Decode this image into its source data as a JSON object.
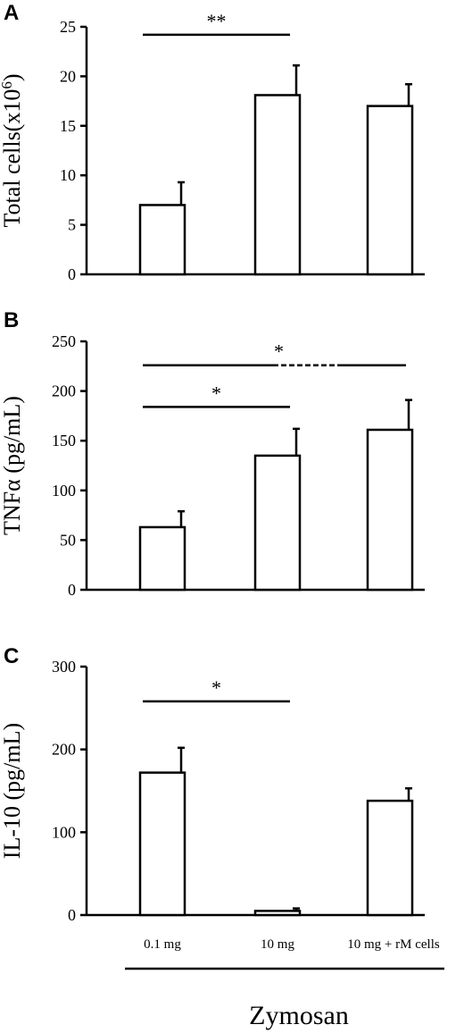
{
  "figure": {
    "xlabel": "Zymosan",
    "categories": [
      "0.1 mg",
      "10 mg",
      "10 mg + rM cells"
    ]
  },
  "chart_data": [
    {
      "panel": "A",
      "type": "bar",
      "ylabel": "Total cells(x10",
      "ylabel_sup": "6",
      "ylabel_end": ")",
      "ylim": [
        0,
        25
      ],
      "yticks": [
        0,
        5,
        10,
        15,
        20,
        25
      ],
      "categories": [
        "0.1 mg",
        "10 mg",
        "10 mg + rM cells"
      ],
      "values": [
        7.0,
        18.1,
        17.0
      ],
      "errors": [
        2.3,
        3.0,
        2.2
      ],
      "significance": [
        {
          "from": 0,
          "to": 1,
          "label": "**",
          "y": 24.2,
          "dashed": false
        }
      ]
    },
    {
      "panel": "B",
      "type": "bar",
      "ylabel": "TNFα (pg/mL)",
      "ylim": [
        0,
        250
      ],
      "yticks": [
        0,
        50,
        100,
        150,
        200,
        250
      ],
      "categories": [
        "0.1 mg",
        "10 mg",
        "10 mg + rM cells"
      ],
      "values": [
        63,
        135,
        161
      ],
      "errors": [
        16,
        27,
        30
      ],
      "significance": [
        {
          "from": 0,
          "to": 2,
          "label": "*",
          "y": 226,
          "dashed": true
        },
        {
          "from": 0,
          "to": 1,
          "label": "*",
          "y": 184,
          "dashed": false
        }
      ]
    },
    {
      "panel": "C",
      "type": "bar",
      "ylabel": "IL-10 (pg/mL)",
      "ylim": [
        0,
        300
      ],
      "yticks": [
        0,
        100,
        200,
        300
      ],
      "categories": [
        "0.1 mg",
        "10 mg",
        "10 mg + rM cells"
      ],
      "values": [
        172,
        5,
        138
      ],
      "errors": [
        30,
        3,
        15
      ],
      "significance": [
        {
          "from": 0,
          "to": 1,
          "label": "*",
          "y": 258,
          "dashed": false
        }
      ]
    }
  ]
}
